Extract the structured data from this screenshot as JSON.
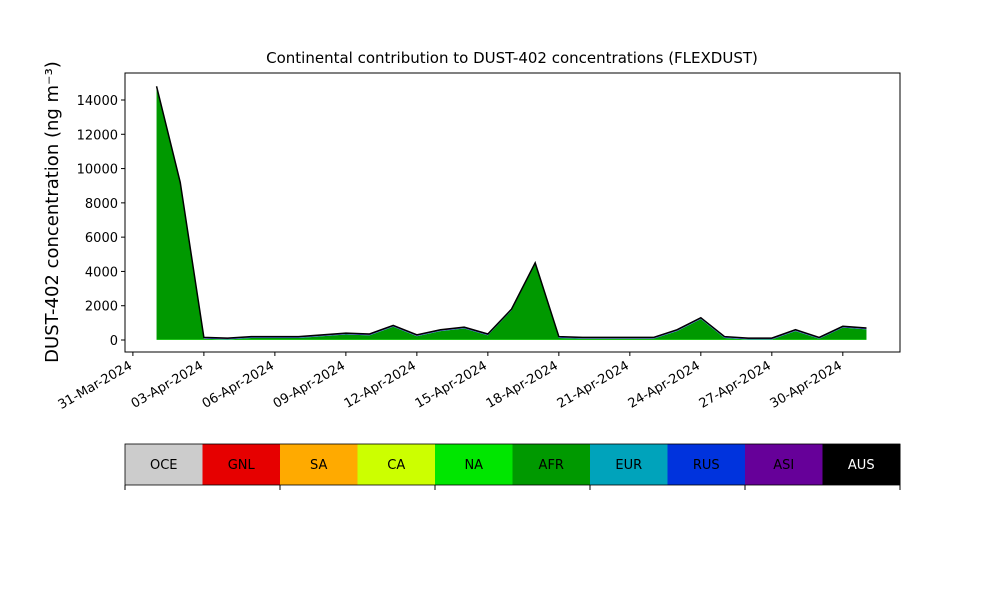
{
  "chart_data": {
    "type": "stacked_area",
    "title": "Continental contribution to DUST-402 concentrations (FLEXDUST)",
    "y_label": "DUST-402 concentration (ng m⁻³)",
    "x": [
      "2024-04-01",
      "2024-04-02",
      "2024-04-03",
      "2024-04-04",
      "2024-04-05",
      "2024-04-06",
      "2024-04-07",
      "2024-04-08",
      "2024-04-09",
      "2024-04-10",
      "2024-04-11",
      "2024-04-12",
      "2024-04-13",
      "2024-04-14",
      "2024-04-15",
      "2024-04-16",
      "2024-04-17",
      "2024-04-18",
      "2024-04-19",
      "2024-04-20",
      "2024-04-21",
      "2024-04-22",
      "2024-04-23",
      "2024-04-24",
      "2024-04-25",
      "2024-04-26",
      "2024-04-27",
      "2024-04-28",
      "2024-04-29",
      "2024-04-30",
      "2024-05-01"
    ],
    "series": [
      {
        "name": "OCE",
        "color": "#cccccc",
        "values": [
          0,
          0,
          0,
          0,
          0,
          0,
          0,
          0,
          0,
          0,
          0,
          0,
          0,
          0,
          0,
          0,
          0,
          0,
          0,
          0,
          0,
          0,
          0,
          0,
          0,
          0,
          0,
          0,
          0,
          0,
          0
        ]
      },
      {
        "name": "GNL",
        "color": "#e60000",
        "values": [
          0,
          0,
          0,
          0,
          0,
          0,
          0,
          0,
          0,
          0,
          0,
          0,
          0,
          0,
          0,
          0,
          0,
          0,
          0,
          0,
          0,
          0,
          0,
          0,
          0,
          0,
          0,
          0,
          0,
          0,
          0
        ]
      },
      {
        "name": "SA",
        "color": "#ffaa00",
        "values": [
          0,
          0,
          0,
          0,
          0,
          0,
          0,
          0,
          0,
          0,
          0,
          0,
          0,
          0,
          0,
          0,
          0,
          0,
          0,
          0,
          0,
          0,
          0,
          0,
          0,
          0,
          0,
          0,
          0,
          0,
          0
        ]
      },
      {
        "name": "CA",
        "color": "#ccff00",
        "values": [
          10,
          10,
          10,
          10,
          10,
          10,
          10,
          10,
          10,
          10,
          10,
          10,
          10,
          10,
          10,
          10,
          10,
          10,
          10,
          10,
          10,
          10,
          10,
          10,
          10,
          10,
          10,
          10,
          10,
          10,
          10
        ]
      },
      {
        "name": "NA",
        "color": "#00e600",
        "values": [
          20,
          20,
          20,
          20,
          20,
          20,
          20,
          20,
          20,
          20,
          20,
          20,
          20,
          20,
          20,
          20,
          20,
          20,
          20,
          20,
          20,
          20,
          20,
          20,
          20,
          20,
          20,
          20,
          20,
          20,
          20
        ]
      },
      {
        "name": "AFR",
        "color": "#009900",
        "values": [
          14690,
          9090,
          40,
          0,
          90,
          90,
          90,
          190,
          290,
          240,
          740,
          190,
          490,
          640,
          240,
          1690,
          4390,
          90,
          40,
          40,
          40,
          40,
          490,
          1190,
          90,
          0,
          0,
          490,
          40,
          690,
          590
        ]
      },
      {
        "name": "EUR",
        "color": "#00a3bb",
        "values": [
          10,
          10,
          10,
          10,
          10,
          10,
          10,
          10,
          10,
          10,
          10,
          10,
          10,
          10,
          10,
          10,
          10,
          10,
          10,
          10,
          10,
          10,
          10,
          10,
          10,
          10,
          10,
          10,
          10,
          10,
          10
        ]
      },
      {
        "name": "RUS",
        "color": "#0033dd",
        "values": [
          20,
          20,
          20,
          20,
          20,
          20,
          20,
          20,
          20,
          20,
          20,
          20,
          20,
          20,
          20,
          20,
          20,
          20,
          20,
          20,
          20,
          20,
          20,
          20,
          20,
          20,
          20,
          20,
          20,
          20,
          20
        ]
      },
      {
        "name": "ASI",
        "color": "#660099",
        "values": [
          50,
          50,
          50,
          50,
          50,
          50,
          50,
          50,
          50,
          50,
          50,
          50,
          50,
          50,
          50,
          50,
          50,
          50,
          50,
          50,
          50,
          50,
          50,
          50,
          50,
          50,
          50,
          50,
          50,
          50,
          50
        ]
      },
      {
        "name": "AUS",
        "color": "#000000",
        "values": [
          0,
          0,
          0,
          0,
          0,
          0,
          0,
          0,
          0,
          0,
          0,
          0,
          0,
          0,
          0,
          0,
          0,
          0,
          0,
          0,
          0,
          0,
          0,
          0,
          0,
          0,
          0,
          0,
          0,
          0,
          0
        ]
      }
    ],
    "xlim": [
      "2024-03-30T16:00",
      "2024-05-02T10:00"
    ],
    "xticks": [
      {
        "value": "2024-03-31",
        "label": "31-Mar-2024"
      },
      {
        "value": "2024-04-03",
        "label": "03-Apr-2024"
      },
      {
        "value": "2024-04-06",
        "label": "06-Apr-2024"
      },
      {
        "value": "2024-04-09",
        "label": "09-Apr-2024"
      },
      {
        "value": "2024-04-12",
        "label": "12-Apr-2024"
      },
      {
        "value": "2024-04-15",
        "label": "15-Apr-2024"
      },
      {
        "value": "2024-04-18",
        "label": "18-Apr-2024"
      },
      {
        "value": "2024-04-21",
        "label": "21-Apr-2024"
      },
      {
        "value": "2024-04-24",
        "label": "24-Apr-2024"
      },
      {
        "value": "2024-04-27",
        "label": "27-Apr-2024"
      },
      {
        "value": "2024-04-30",
        "label": "30-Apr-2024"
      }
    ],
    "ylim": [
      -700,
      15575
    ],
    "yticks": [
      0,
      2000,
      4000,
      6000,
      8000,
      10000,
      12000,
      14000
    ]
  }
}
